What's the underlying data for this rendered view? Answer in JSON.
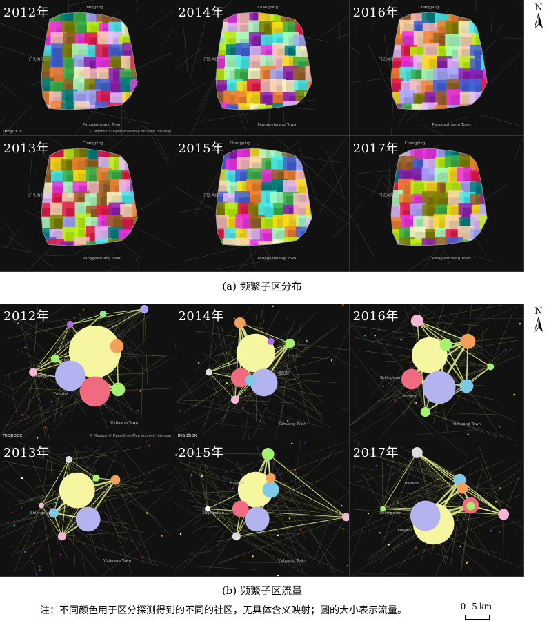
{
  "section_a": {
    "caption": "(a) 频繁子区分布",
    "panels": [
      {
        "year": "2012年"
      },
      {
        "year": "2014年"
      },
      {
        "year": "2016年"
      },
      {
        "year": "2013年"
      },
      {
        "year": "2015年"
      },
      {
        "year": "2017年"
      }
    ],
    "map_labels": {
      "top": "Changping",
      "left": "门头沟区",
      "bottom": "Fengtai",
      "lower": "Panggezhuang Town",
      "lower2": "Anding Town"
    }
  },
  "section_b": {
    "caption": "(b) 频繁子区流量",
    "panels": [
      {
        "year": "2012年"
      },
      {
        "year": "2014年"
      },
      {
        "year": "2016年"
      },
      {
        "year": "2013年"
      },
      {
        "year": "2015年"
      },
      {
        "year": "2017年"
      }
    ],
    "map_labels": {
      "haidian": "Haidian",
      "shijingshan": "Shijingshan",
      "fengtai": "Fengtai",
      "chaoyang": "朝阳区",
      "tongzhou": "通州",
      "airport": "Beijing Capital International Airport",
      "yizhuang": "Yizhuang Town"
    }
  },
  "map": {
    "logo": "mapbox",
    "attribution": "© Mapbox © OpenStreetMap  Improve this map"
  },
  "north_arrow": {
    "label": "N"
  },
  "note": "注：不同颜色用于区分探测得到的不同的社区，无具体含义映射；圆的大小表示流量。",
  "scale_bar": {
    "zero": "0",
    "label": "5 km"
  },
  "community_colors": [
    "#e6194b",
    "#3cb44b",
    "#ffe119",
    "#4363d8",
    "#f58231",
    "#911eb4",
    "#46f0f0",
    "#f032e6",
    "#bcf60c",
    "#fabebe",
    "#008080",
    "#e6beff",
    "#9a6324",
    "#fffac8",
    "#aaffc3",
    "#808000",
    "#ffd8b1",
    "#a9a9ff"
  ]
}
